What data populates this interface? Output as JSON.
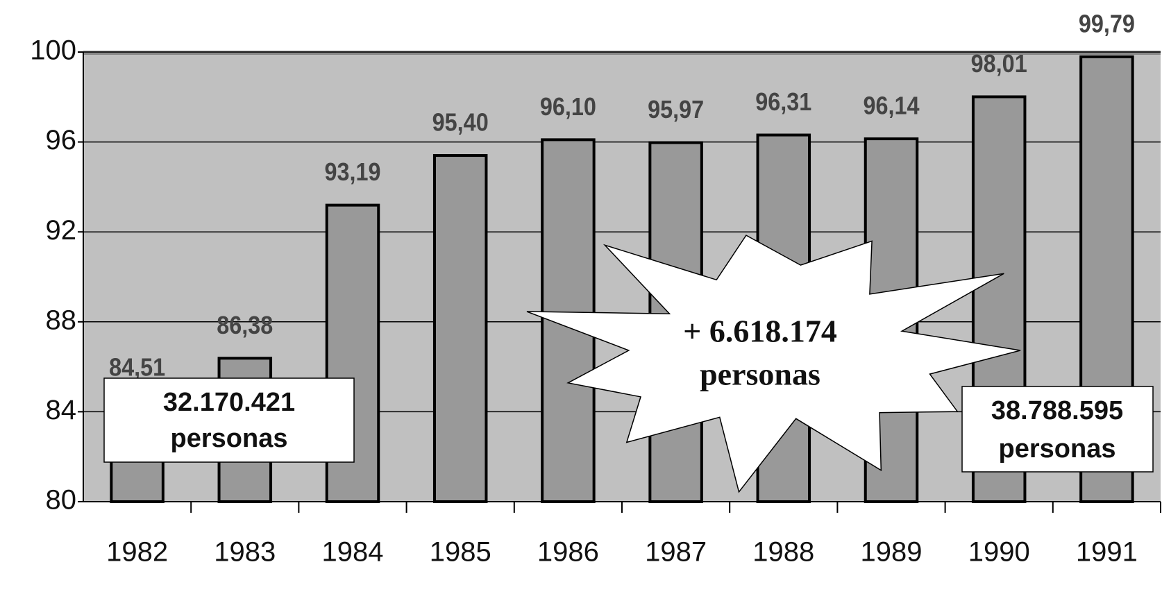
{
  "chart_data": {
    "type": "bar",
    "categories": [
      "1982",
      "1983",
      "1984",
      "1985",
      "1986",
      "1987",
      "1988",
      "1989",
      "1990",
      "1991"
    ],
    "values": [
      84.51,
      86.38,
      93.19,
      95.4,
      96.1,
      95.97,
      96.31,
      96.14,
      98.01,
      99.79
    ],
    "value_labels": [
      "84,51",
      "86,38",
      "93,19",
      "95,40",
      "96,10",
      "95,97",
      "96,31",
      "96,14",
      "98,01",
      "99,79"
    ],
    "color": "#999999",
    "ylim": [
      80,
      100
    ],
    "yticks": [
      80,
      84,
      88,
      92,
      96,
      100
    ],
    "grid": true,
    "annotations": [
      {
        "lines": [
          "32.170.421",
          "personas"
        ]
      },
      {
        "lines": [
          "+ 6.618.174",
          "personas"
        ]
      },
      {
        "lines": [
          "38.788.595",
          "personas"
        ]
      }
    ]
  }
}
